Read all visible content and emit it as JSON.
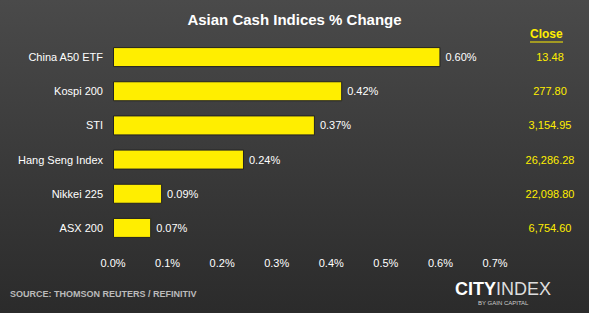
{
  "chart_data": {
    "type": "bar",
    "title": "Asian Cash Indices % Change",
    "orientation": "horizontal",
    "categories": [
      "China A50 ETF",
      "Kospi 200",
      "STI",
      "Hang Seng Index",
      "Nikkei 225",
      "ASX 200"
    ],
    "values": [
      0.6,
      0.42,
      0.37,
      0.24,
      0.09,
      0.07
    ],
    "value_labels": [
      "0.60%",
      "0.42%",
      "0.37%",
      "0.24%",
      "0.09%",
      "0.07%"
    ],
    "data_labels": true,
    "color": "#ffee00",
    "xlim": [
      0,
      0.7
    ],
    "xticks": [
      {
        "value": 0,
        "label": "0.0%"
      },
      {
        "value": 0.1,
        "label": "0.1%"
      },
      {
        "value": 0.2,
        "label": "0.2%"
      },
      {
        "value": 0.3,
        "label": "0.3%"
      },
      {
        "value": 0.4,
        "label": "0.4%"
      },
      {
        "value": 0.5,
        "label": "0.5%"
      },
      {
        "value": 0.6,
        "label": "0.6%"
      },
      {
        "value": 0.7,
        "label": "0.7%"
      }
    ],
    "grid": false,
    "close": {
      "header": "Close",
      "labels": [
        "13.48",
        "277.80",
        "3,154.95",
        "26,286.28",
        "22,098.80",
        "6,754.60"
      ]
    },
    "source": "SOURCE: THOMSON REUTERS / REFINITIV",
    "logo": [
      "CITY",
      "INDEX"
    ],
    "logo_tagline": "BY GAIN CAPITAL"
  }
}
